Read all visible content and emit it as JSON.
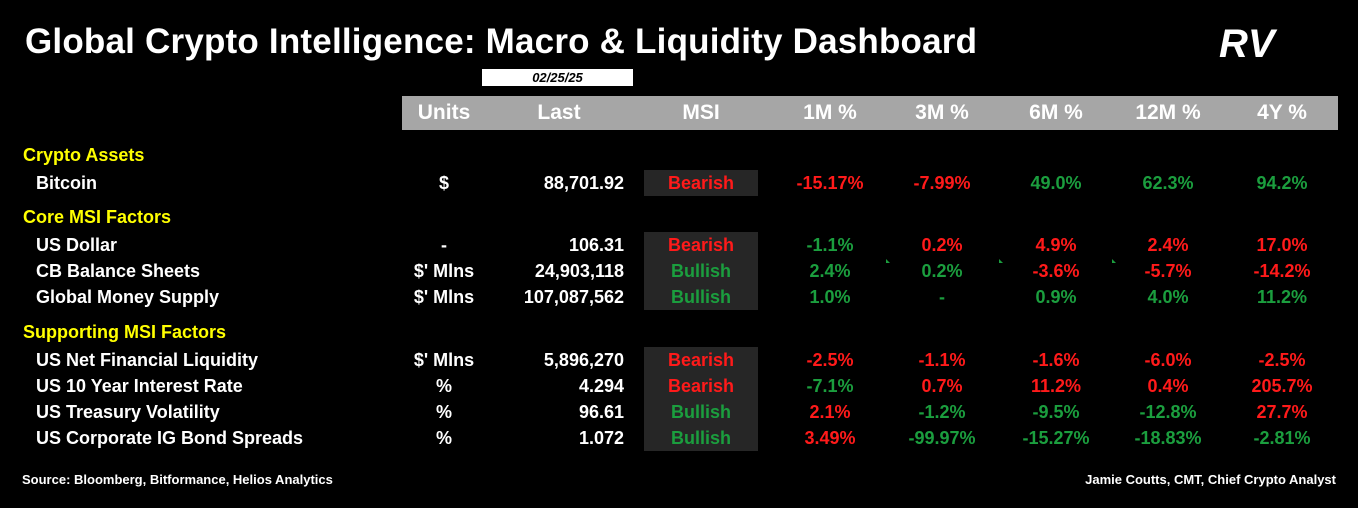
{
  "title": "Global Crypto Intelligence: Macro & Liquidity Dashboard",
  "date": "02/25/25",
  "logo_text": "RV",
  "colors": {
    "background": "#000000",
    "header_bar": "#a6a6a6",
    "section": "#ffff00",
    "positive": "#1b9e3e",
    "negative": "#ff1a1a",
    "msi_cell": "#262626"
  },
  "headers": [
    "Units",
    "Last",
    "MSI",
    "1M %",
    "3M %",
    "6M %",
    "12M %",
    "4Y %"
  ],
  "sections": [
    {
      "name": "Crypto Assets",
      "rows": [
        {
          "name": "Bitcoin",
          "units": "$",
          "last": "88,701.92",
          "msi": "Bearish",
          "pcts": [
            {
              "v": "-15.17%",
              "c": "neg"
            },
            {
              "v": "-7.99%",
              "c": "neg"
            },
            {
              "v": "49.0%",
              "c": "pos"
            },
            {
              "v": "62.3%",
              "c": "pos"
            },
            {
              "v": "94.2%",
              "c": "pos"
            }
          ]
        }
      ]
    },
    {
      "name": "Core MSI Factors",
      "rows": [
        {
          "name": "US Dollar",
          "units": "-",
          "last": "106.31",
          "msi": "Bearish",
          "pcts": [
            {
              "v": "-1.1%",
              "c": "pos"
            },
            {
              "v": "0.2%",
              "c": "neg"
            },
            {
              "v": "4.9%",
              "c": "neg"
            },
            {
              "v": "2.4%",
              "c": "neg"
            },
            {
              "v": "17.0%",
              "c": "neg"
            }
          ]
        },
        {
          "name": "CB Balance Sheets",
          "units": "$' Mlns",
          "last": "24,903,118",
          "msi": "Bullish",
          "pcts": [
            {
              "v": "2.4%",
              "c": "pos"
            },
            {
              "v": "0.2%",
              "c": "pos"
            },
            {
              "v": "-3.6%",
              "c": "neg"
            },
            {
              "v": "-5.7%",
              "c": "neg"
            },
            {
              "v": "-14.2%",
              "c": "neg"
            }
          ]
        },
        {
          "name": "Global Money Supply",
          "units": "$' Mlns",
          "last": "107,087,562",
          "msi": "Bullish",
          "pcts": [
            {
              "v": "1.0%",
              "c": "pos"
            },
            {
              "v": "-",
              "c": "pos"
            },
            {
              "v": "0.9%",
              "c": "pos"
            },
            {
              "v": "4.0%",
              "c": "pos"
            },
            {
              "v": "11.2%",
              "c": "pos"
            }
          ]
        }
      ]
    },
    {
      "name": "Supporting MSI Factors",
      "rows": [
        {
          "name": "US Net Financial Liquidity",
          "units": "$' Mlns",
          "last": "5,896,270",
          "msi": "Bearish",
          "pcts": [
            {
              "v": "-2.5%",
              "c": "neg"
            },
            {
              "v": "-1.1%",
              "c": "neg"
            },
            {
              "v": "-1.6%",
              "c": "neg"
            },
            {
              "v": "-6.0%",
              "c": "neg"
            },
            {
              "v": "-2.5%",
              "c": "neg"
            }
          ]
        },
        {
          "name": "US 10 Year Interest Rate",
          "units": "%",
          "last": "4.294",
          "msi": "Bearish",
          "pcts": [
            {
              "v": "-7.1%",
              "c": "pos"
            },
            {
              "v": "0.7%",
              "c": "neg"
            },
            {
              "v": "11.2%",
              "c": "neg"
            },
            {
              "v": "0.4%",
              "c": "neg"
            },
            {
              "v": "205.7%",
              "c": "neg"
            }
          ]
        },
        {
          "name": "US Treasury Volatility",
          "units": "%",
          "last": "96.61",
          "msi": "Bullish",
          "pcts": [
            {
              "v": "2.1%",
              "c": "neg"
            },
            {
              "v": "-1.2%",
              "c": "pos"
            },
            {
              "v": "-9.5%",
              "c": "pos"
            },
            {
              "v": "-12.8%",
              "c": "pos"
            },
            {
              "v": "27.7%",
              "c": "neg"
            }
          ]
        },
        {
          "name": "US Corporate IG Bond Spreads",
          "units": "%",
          "last": "1.072",
          "msi": "Bullish",
          "pcts": [
            {
              "v": "3.49%",
              "c": "neg"
            },
            {
              "v": "-99.97%",
              "c": "pos"
            },
            {
              "v": "-15.27%",
              "c": "pos"
            },
            {
              "v": "-18.83%",
              "c": "pos"
            },
            {
              "v": "-2.81%",
              "c": "pos"
            }
          ]
        }
      ]
    }
  ],
  "footer": {
    "source": "Source: Bloomberg, Bitformance, Helios Analytics",
    "author": "Jamie Coutts, CMT, Chief Crypto Analyst"
  }
}
